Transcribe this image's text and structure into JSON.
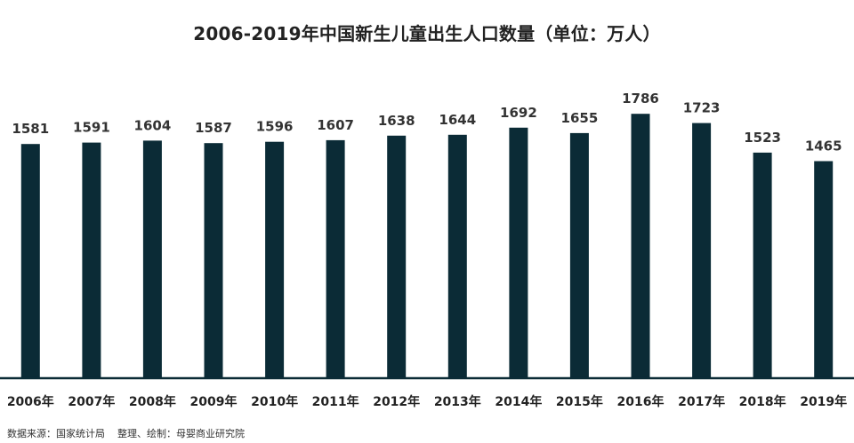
{
  "chart_data": {
    "type": "bar",
    "title": "2006-2019年中国新生儿童出生人口数量（单位：万人）",
    "categories": [
      "2006年",
      "2007年",
      "2008年",
      "2009年",
      "2010年",
      "2011年",
      "2012年",
      "2013年",
      "2014年",
      "2015年",
      "2016年",
      "2017年",
      "2018年",
      "2019年"
    ],
    "values": [
      1581,
      1591,
      1604,
      1587,
      1596,
      1607,
      1638,
      1644,
      1692,
      1655,
      1786,
      1723,
      1523,
      1465
    ],
    "xlabel": "",
    "ylabel": "",
    "grid": false,
    "legend": "none",
    "bar_color": "#0b2b36",
    "axis_color": "#0b2b36"
  },
  "footer": {
    "source": "数据来源：国家统计局    整理、绘制：母婴商业研究院"
  }
}
